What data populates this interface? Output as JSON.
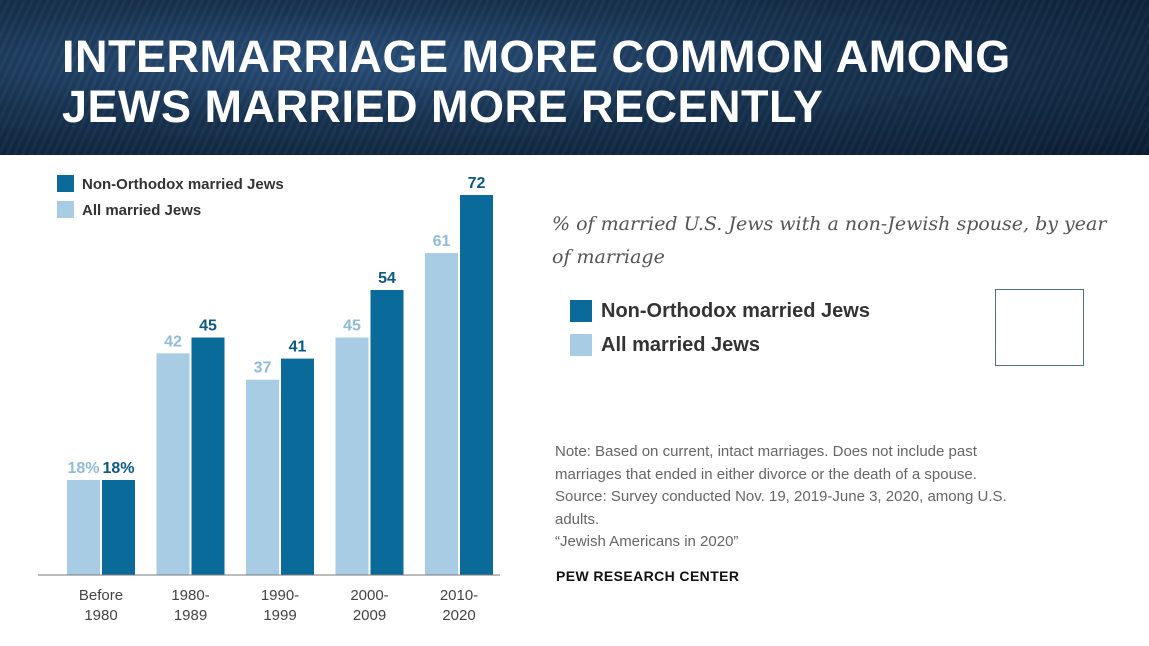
{
  "title_lines": [
    "INTERMARRIAGE MORE COMMON AMONG",
    "JEWS MARRIED MORE RECENTLY"
  ],
  "subtitle": "% of married U.S. Jews with a non-Jewish spouse, by year of marriage",
  "legend": [
    {
      "label": "Non-Orthodox married Jews",
      "color": "#0a6a9a"
    },
    {
      "label": "All married Jews",
      "color": "#a8cce3"
    }
  ],
  "note_lines": [
    "Note: Based on current, intact marriages. Does not include past",
    "marriages that ended in either divorce or the death of a spouse.",
    "Source: Survey conducted Nov. 19, 2019-June 3, 2020, among U.S.",
    "adults.",
    "“Jewish Americans in 2020”"
  ],
  "source_org": "PEW RESEARCH CENTER",
  "chart_data": {
    "type": "bar",
    "categories": [
      [
        "Before",
        "1980"
      ],
      [
        "1980-",
        "1989"
      ],
      [
        "1990-",
        "1999"
      ],
      [
        "2000-",
        "2009"
      ],
      [
        "2010-",
        "2020"
      ]
    ],
    "series": [
      {
        "name": "All married Jews",
        "color": "#a8cce3",
        "values": [
          18,
          42,
          37,
          45,
          61
        ],
        "labels": [
          "18%",
          "42",
          "37",
          "45",
          "61"
        ]
      },
      {
        "name": "Non-Orthodox married Jews",
        "color": "#0a6a9a",
        "values": [
          18,
          45,
          41,
          54,
          72
        ],
        "labels": [
          "18%",
          "45",
          "41",
          "54",
          "72"
        ]
      }
    ],
    "ylim": [
      0,
      72
    ],
    "legend_position": "top-left",
    "grid": false
  }
}
